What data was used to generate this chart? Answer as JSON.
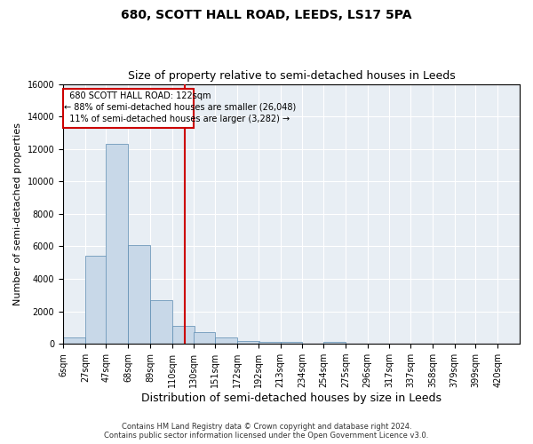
{
  "title": "680, SCOTT HALL ROAD, LEEDS, LS17 5PA",
  "subtitle": "Size of property relative to semi-detached houses in Leeds",
  "xlabel": "Distribution of semi-detached houses by size in Leeds",
  "ylabel": "Number of semi-detached properties",
  "footer_line1": "Contains HM Land Registry data © Crown copyright and database right 2024.",
  "footer_line2": "Contains public sector information licensed under the Open Government Licence v3.0.",
  "property_label": "680 SCOTT HALL ROAD: 122sqm",
  "pct_smaller": 88,
  "num_smaller": 26048,
  "pct_larger": 11,
  "num_larger": 3282,
  "bin_labels": [
    "6sqm",
    "27sqm",
    "47sqm",
    "68sqm",
    "89sqm",
    "110sqm",
    "130sqm",
    "151sqm",
    "172sqm",
    "192sqm",
    "213sqm",
    "234sqm",
    "254sqm",
    "275sqm",
    "296sqm",
    "317sqm",
    "337sqm",
    "358sqm",
    "379sqm",
    "399sqm",
    "420sqm"
  ],
  "bin_edges": [
    6,
    27,
    47,
    68,
    89,
    110,
    130,
    151,
    172,
    192,
    213,
    234,
    254,
    275,
    296,
    317,
    337,
    358,
    379,
    399,
    420
  ],
  "bar_heights": [
    400,
    5400,
    12300,
    6100,
    2700,
    1100,
    700,
    400,
    200,
    100,
    100,
    0,
    100,
    0,
    0,
    0,
    0,
    0,
    0,
    0
  ],
  "bar_color": "#c8d8e8",
  "bar_edge_color": "#5a8ab0",
  "vline_x": 122,
  "vline_color": "#cc0000",
  "annotation_box_color": "#cc0000",
  "ylim": [
    0,
    16000
  ],
  "yticks": [
    0,
    2000,
    4000,
    6000,
    8000,
    10000,
    12000,
    14000,
    16000
  ],
  "bg_color": "#e8eef4",
  "grid_color": "#ffffff",
  "title_fontsize": 10,
  "subtitle_fontsize": 9,
  "ylabel_fontsize": 8,
  "xlabel_fontsize": 9,
  "tick_fontsize": 7,
  "annot_fontsize": 7,
  "footer_fontsize": 6
}
